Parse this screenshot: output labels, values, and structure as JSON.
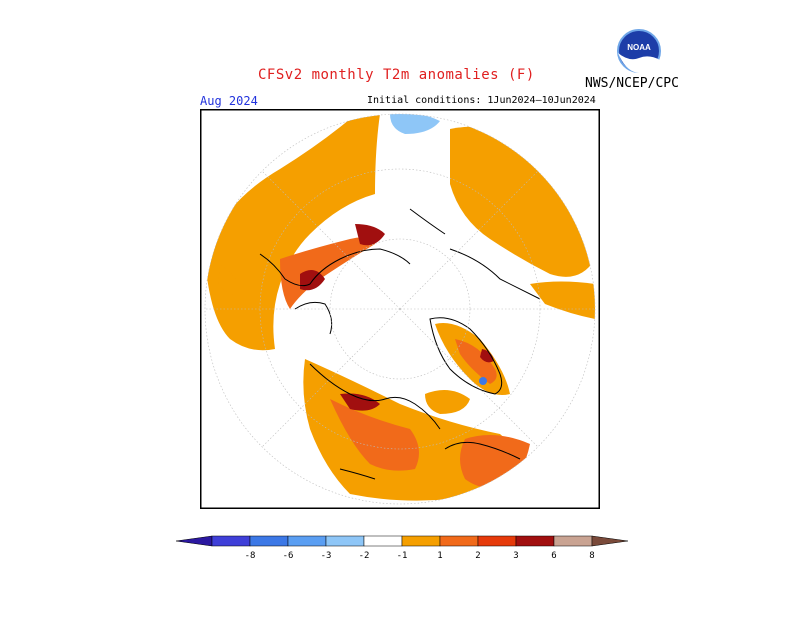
{
  "title": "CFSv2 monthly T2m anomalies (F)",
  "agency": "NWS/NCEP/CPC",
  "logo_text": "NOAA",
  "target_month": "Aug 2024",
  "initial_conditions": "Initial conditions: 1Jun2024—10Jun2024",
  "colorbar": {
    "bins": [
      {
        "color": "#2b18a0"
      },
      {
        "color": "#3f3fd8"
      },
      {
        "color": "#3c78e6"
      },
      {
        "color": "#5a9ef2"
      },
      {
        "color": "#8ec6f7"
      },
      {
        "color": "#ffffff"
      },
      {
        "color": "#f59f00"
      },
      {
        "color": "#f16a1a"
      },
      {
        "color": "#e63a0a"
      },
      {
        "color": "#a10f0f"
      },
      {
        "color": "#c9a392"
      },
      {
        "color": "#7a4a3a"
      }
    ],
    "labels": [
      "-8",
      "-6",
      "-3",
      "-2",
      "-1",
      "1",
      "2",
      "3",
      "6",
      "8"
    ]
  },
  "palette": {
    "orange": "#f59f00",
    "red_orange": "#f16a1a",
    "red": "#e63a0a",
    "dark_red": "#a10f0f",
    "light_blue": "#8ec6f7",
    "blue": "#3c78e6"
  }
}
